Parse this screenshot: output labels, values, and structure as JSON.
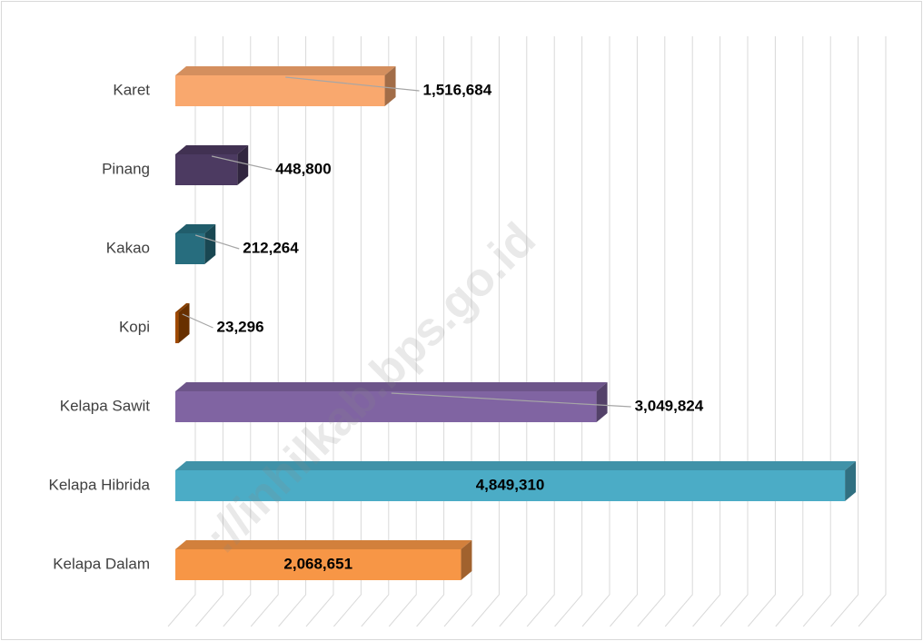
{
  "chart_data": {
    "type": "bar3d",
    "orientation": "horizontal",
    "categories": [
      "Karet",
      "Pinang",
      "Kakao",
      "Kopi",
      "Kelapa Sawit",
      "Kelapa Hibrida",
      "Kelapa Dalam"
    ],
    "values": [
      1516684,
      448800,
      212264,
      23296,
      3049824,
      4849310,
      2068651
    ],
    "value_labels": [
      "1,516,684",
      "448,800",
      "212,264",
      "23,296",
      "3,049,824",
      "4,849,310",
      "2,068,651"
    ],
    "label_inside": [
      false,
      false,
      false,
      false,
      false,
      true,
      true
    ],
    "colors": [
      "#f9a86e",
      "#4c3a61",
      "#276d7e",
      "#a04a00",
      "#8064a2",
      "#4bacc6",
      "#f79646"
    ],
    "xlim": [
      0,
      5000000
    ],
    "xticks": [
      0,
      200000,
      400000,
      600000,
      800000,
      1000000,
      1200000,
      1400000,
      1600000,
      1800000,
      2000000,
      2200000,
      2400000,
      2600000,
      2800000,
      3000000,
      3200000,
      3400000,
      3600000,
      3800000,
      4000000,
      4200000,
      4400000,
      4600000,
      4800000,
      5000000
    ],
    "grid": true,
    "watermark": "://inhilkab.bps.go.id"
  }
}
